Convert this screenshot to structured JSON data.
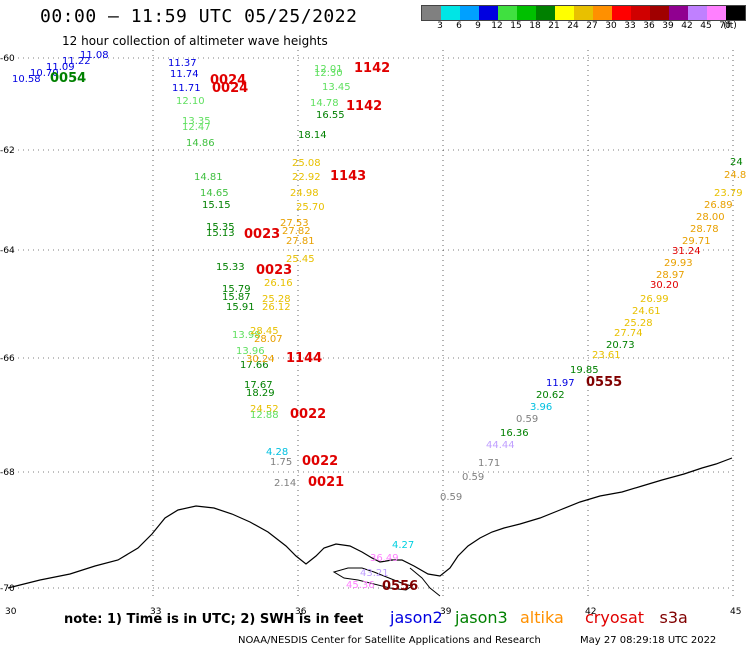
{
  "header": {
    "title": "00:00 – 11:59 UTC 05/25/2022",
    "subtitle": "12 hour collection of altimeter wave heights"
  },
  "colorbar": {
    "colors": [
      "#808080",
      "#00e5e5",
      "#00a0ff",
      "#0000e0",
      "#40e040",
      "#00c000",
      "#008000",
      "#ffff00",
      "#e8c000",
      "#ff9000",
      "#ff0000",
      "#d00000",
      "#a00000",
      "#900090",
      "#c080ff",
      "#ff80ff",
      "#000000"
    ],
    "labels": [
      "3",
      "6",
      "9",
      "12",
      "15",
      "18",
      "21",
      "24",
      "27",
      "30",
      "33",
      "36",
      "39",
      "42",
      "45",
      "70",
      "(ft)"
    ]
  },
  "map": {
    "lon_labels": [
      "30",
      "33",
      "36",
      "39",
      "42",
      "45"
    ],
    "lat_labels": [
      "-60",
      "-62",
      "-64",
      "-66",
      "-68",
      "-70"
    ]
  },
  "readings": [
    {
      "text": "10.58",
      "color": "#0000e0"
    },
    {
      "text": "10.70",
      "color": "#0000e0"
    },
    {
      "text": "11.09",
      "color": "#0000e0"
    },
    {
      "text": "11.22",
      "color": "#0000e0"
    },
    {
      "text": "11.08",
      "color": "#0000e0"
    },
    {
      "text": "0054",
      "color": "#008000"
    },
    {
      "text": "11.37",
      "color": "#0000e0"
    },
    {
      "text": "11.74",
      "color": "#0000e0"
    },
    {
      "text": "11.71",
      "color": "#0000e0"
    },
    {
      "text": "0024",
      "color": "#e00000"
    },
    {
      "text": "0024",
      "color": "#e00000"
    },
    {
      "text": "12.10",
      "color": "#60e060"
    },
    {
      "text": "13.35",
      "color": "#60e060"
    },
    {
      "text": "12.47",
      "color": "#60e060"
    },
    {
      "text": "14.86",
      "color": "#40c040"
    },
    {
      "text": "14.81",
      "color": "#40c040"
    },
    {
      "text": "14.65",
      "color": "#40c040"
    },
    {
      "text": "15.15",
      "color": "#008000"
    },
    {
      "text": "15.35",
      "color": "#008000"
    },
    {
      "text": "15.13",
      "color": "#008000"
    },
    {
      "text": "0023",
      "color": "#e00000"
    },
    {
      "text": "15.33",
      "color": "#008000"
    },
    {
      "text": "0023",
      "color": "#e00000"
    },
    {
      "text": "15.79",
      "color": "#008000"
    },
    {
      "text": "15.87",
      "color": "#008000"
    },
    {
      "text": "15.91",
      "color": "#008000"
    },
    {
      "text": "13.98",
      "color": "#60e060"
    },
    {
      "text": "13.96",
      "color": "#60e060"
    },
    {
      "text": "17.66",
      "color": "#008000"
    },
    {
      "text": "17.67",
      "color": "#008000"
    },
    {
      "text": "18.29",
      "color": "#008000"
    },
    {
      "text": "24.52",
      "color": "#e8c000"
    },
    {
      "text": "12.88",
      "color": "#60e060"
    },
    {
      "text": "0022",
      "color": "#e00000"
    },
    {
      "text": "4.28",
      "color": "#00c0e0"
    },
    {
      "text": "1.75",
      "color": "#808080"
    },
    {
      "text": "0022",
      "color": "#e00000"
    },
    {
      "text": "2.14",
      "color": "#808080"
    },
    {
      "text": "0021",
      "color": "#e00000"
    },
    {
      "text": "12.01",
      "color": "#60e060"
    },
    {
      "text": "12.30",
      "color": "#60e060"
    },
    {
      "text": "1142",
      "color": "#e00000"
    },
    {
      "text": "13.45",
      "color": "#60e060"
    },
    {
      "text": "14.78",
      "color": "#60e060"
    },
    {
      "text": "16.55",
      "color": "#008000"
    },
    {
      "text": "1142",
      "color": "#e00000"
    },
    {
      "text": "18.14",
      "color": "#008000"
    },
    {
      "text": "25.08",
      "color": "#e8c000"
    },
    {
      "text": "22.92",
      "color": "#e8c000"
    },
    {
      "text": "1143",
      "color": "#e00000"
    },
    {
      "text": "24.98",
      "color": "#e8c000"
    },
    {
      "text": "25.70",
      "color": "#e8c000"
    },
    {
      "text": "27.53",
      "color": "#e8a000"
    },
    {
      "text": "27.82",
      "color": "#e8a000"
    },
    {
      "text": "27.81",
      "color": "#e8a000"
    },
    {
      "text": "25.45",
      "color": "#e8c000"
    },
    {
      "text": "26.16",
      "color": "#e8c000"
    },
    {
      "text": "25.28",
      "color": "#e8c000"
    },
    {
      "text": "26.12",
      "color": "#e8c000"
    },
    {
      "text": "28.45",
      "color": "#e8c000"
    },
    {
      "text": "28.07",
      "color": "#e8a000"
    },
    {
      "text": "30.24",
      "color": "#e8a000"
    },
    {
      "text": "1144",
      "color": "#e00000"
    },
    {
      "text": "24",
      "color": "#008000"
    },
    {
      "text": "24.8",
      "color": "#e8a000"
    },
    {
      "text": "23.79",
      "color": "#e8c000"
    },
    {
      "text": "26.89",
      "color": "#e8a000"
    },
    {
      "text": "28.00",
      "color": "#e8a000"
    },
    {
      "text": "28.78",
      "color": "#e8a000"
    },
    {
      "text": "29.71",
      "color": "#e8a000"
    },
    {
      "text": "31.24",
      "color": "#e00000"
    },
    {
      "text": "29.93",
      "color": "#e8a000"
    },
    {
      "text": "28.97",
      "color": "#e8a000"
    },
    {
      "text": "30.20",
      "color": "#e00000"
    },
    {
      "text": "26.99",
      "color": "#e8c000"
    },
    {
      "text": "24.61",
      "color": "#e8c000"
    },
    {
      "text": "25.28",
      "color": "#e8c000"
    },
    {
      "text": "27.74",
      "color": "#e8c000"
    },
    {
      "text": "20.73",
      "color": "#008000"
    },
    {
      "text": "23.61",
      "color": "#e8c000"
    },
    {
      "text": "19.85",
      "color": "#008000"
    },
    {
      "text": "11.97",
      "color": "#0000e0"
    },
    {
      "text": "0555",
      "color": "#800000"
    },
    {
      "text": "20.62",
      "color": "#008000"
    },
    {
      "text": "3.96",
      "color": "#00c0e0"
    },
    {
      "text": "0.59",
      "color": "#808080"
    },
    {
      "text": "16.36",
      "color": "#008000"
    },
    {
      "text": "44.44",
      "color": "#c0a0ff"
    },
    {
      "text": "1.71",
      "color": "#808080"
    },
    {
      "text": "0.59",
      "color": "#808080"
    },
    {
      "text": "0.59",
      "color": "#808080"
    },
    {
      "text": "4.27",
      "color": "#00d0e0"
    },
    {
      "text": "36.49",
      "color": "#ff80ff"
    },
    {
      "text": "43.21",
      "color": "#c0a0ff"
    },
    {
      "text": "45.36",
      "color": "#ff80ff"
    },
    {
      "text": "0556",
      "color": "#800000"
    }
  ],
  "footer": {
    "note": "note: 1) Time is in UTC; 2) SWH is in feet",
    "missions": [
      {
        "name": "jason2",
        "color": "#0000e0"
      },
      {
        "name": "jason3",
        "color": "#008000"
      },
      {
        "name": "altika",
        "color": "#ff9000"
      },
      {
        "name": "cryosat",
        "color": "#e00000"
      },
      {
        "name": "s3a",
        "color": "#800000"
      }
    ],
    "credit": "NOAA/NESDIS Center for Satellite Applications and Research",
    "timestamp": "May 27 08:29:18 UTC 2022"
  }
}
